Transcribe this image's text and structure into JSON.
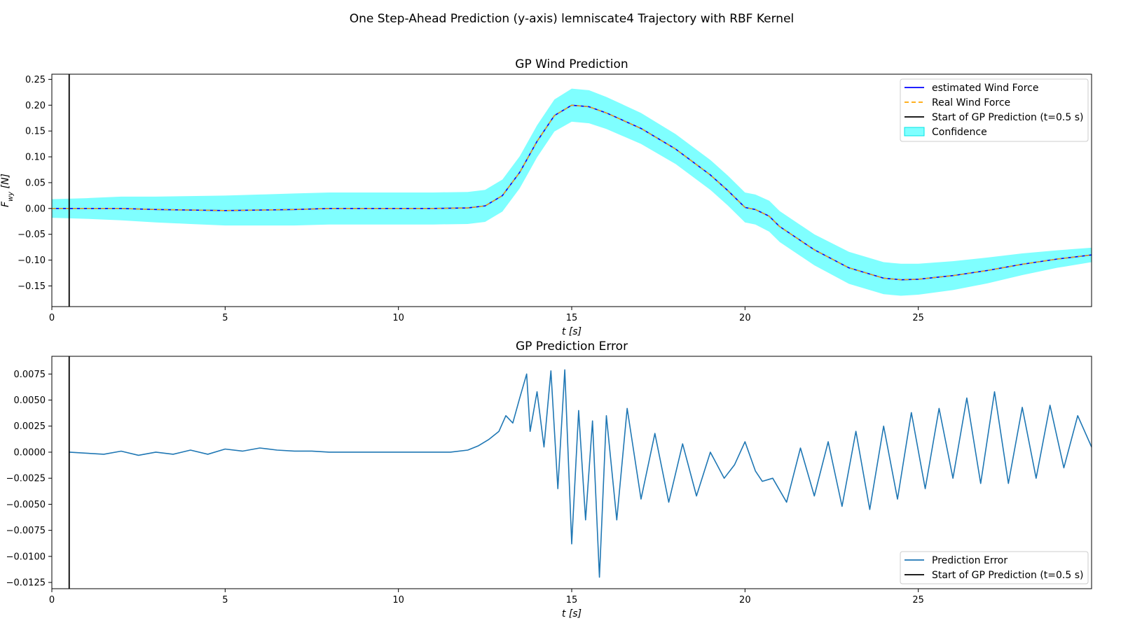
{
  "figure": {
    "suptitle": "One Step-Ahead Prediction (y-axis) lemniscate4 Trajectory with RBF Kernel"
  },
  "chart_data": [
    {
      "type": "line",
      "title": "GP Wind Prediction",
      "xlabel": "t [s]",
      "ylabel": "F_wy [N]",
      "xlim": [
        0,
        30
      ],
      "ylim": [
        -0.19,
        0.26
      ],
      "x_ticks": [
        0,
        5,
        10,
        15,
        20,
        25
      ],
      "y_ticks": [
        -0.15,
        -0.1,
        -0.05,
        0.0,
        0.05,
        0.1,
        0.15,
        0.2,
        0.25
      ],
      "x_tick_labels": [
        "0",
        "5",
        "10",
        "15",
        "20",
        "25"
      ],
      "y_tick_labels": [
        "−0.15",
        "−0.10",
        "−0.05",
        "0.00",
        "0.05",
        "0.10",
        "0.15",
        "0.20",
        "0.25"
      ],
      "grid": false,
      "legend_position": "upper right",
      "x": [
        0,
        1,
        2,
        3,
        4,
        5,
        6,
        7,
        8,
        9,
        10,
        11,
        12,
        12.5,
        13,
        13.5,
        14,
        14.5,
        15,
        15.5,
        16,
        17,
        18,
        19,
        19.5,
        20,
        20.3,
        20.7,
        21,
        22,
        23,
        24,
        24.5,
        25,
        26,
        27,
        28,
        29,
        30
      ],
      "series": [
        {
          "name": "estimated Wind Force",
          "color": "#0000ff",
          "style": "solid",
          "values": [
            0.0,
            0.0,
            0.0,
            -0.002,
            -0.003,
            -0.004,
            -0.003,
            -0.002,
            0.0,
            0.0,
            0.0,
            0.0,
            0.001,
            0.005,
            0.025,
            0.07,
            0.13,
            0.18,
            0.2,
            0.197,
            0.185,
            0.155,
            0.115,
            0.065,
            0.035,
            0.002,
            -0.002,
            -0.015,
            -0.035,
            -0.08,
            -0.115,
            -0.135,
            -0.138,
            -0.137,
            -0.13,
            -0.12,
            -0.108,
            -0.098,
            -0.09
          ]
        },
        {
          "name": "Real Wind Force",
          "color": "#ffa500",
          "style": "dashed",
          "values": [
            0.0,
            0.0,
            0.0,
            -0.002,
            -0.003,
            -0.004,
            -0.003,
            -0.002,
            0.0,
            0.0,
            0.0,
            0.0,
            0.001,
            0.005,
            0.025,
            0.07,
            0.13,
            0.18,
            0.2,
            0.197,
            0.185,
            0.155,
            0.115,
            0.065,
            0.035,
            0.002,
            -0.002,
            -0.015,
            -0.035,
            -0.08,
            -0.115,
            -0.135,
            -0.138,
            -0.137,
            -0.13,
            -0.12,
            -0.108,
            -0.098,
            -0.09
          ]
        },
        {
          "name": "Start of GP Prediction (t=0.5 s)",
          "type": "vline",
          "color": "#000000",
          "x": 0.5
        },
        {
          "name": "Confidence",
          "type": "band",
          "color": "#00ffff",
          "opacity": 0.5,
          "halfwidth": [
            0.018,
            0.02,
            0.023,
            0.025,
            0.027,
            0.029,
            0.03,
            0.031,
            0.031,
            0.031,
            0.031,
            0.031,
            0.031,
            0.031,
            0.031,
            0.031,
            0.031,
            0.031,
            0.032,
            0.032,
            0.031,
            0.03,
            0.029,
            0.029,
            0.029,
            0.029,
            0.029,
            0.03,
            0.03,
            0.03,
            0.031,
            0.031,
            0.031,
            0.03,
            0.028,
            0.025,
            0.021,
            0.017,
            0.014
          ]
        }
      ]
    },
    {
      "type": "line",
      "title": "GP Prediction Error",
      "xlabel": "t [s]",
      "xlim": [
        0,
        30
      ],
      "ylim": [
        -0.0131,
        0.0092
      ],
      "x_ticks": [
        0,
        5,
        10,
        15,
        20,
        25
      ],
      "y_ticks": [
        -0.0125,
        -0.01,
        -0.0075,
        -0.005,
        -0.0025,
        0.0,
        0.0025,
        0.005,
        0.0075
      ],
      "x_tick_labels": [
        "0",
        "5",
        "10",
        "15",
        "20",
        "25"
      ],
      "y_tick_labels": [
        "−0.0125",
        "−0.0100",
        "−0.0075",
        "−0.0050",
        "−0.0025",
        "0.0000",
        "0.0025",
        "0.0050",
        "0.0075"
      ],
      "grid": false,
      "legend_position": "lower right",
      "x": [
        0.5,
        1,
        1.5,
        2,
        2.5,
        3,
        3.5,
        4,
        4.5,
        5,
        5.5,
        6,
        6.5,
        7,
        7.5,
        8,
        9,
        10,
        11,
        11.5,
        12,
        12.3,
        12.6,
        12.9,
        13.1,
        13.3,
        13.5,
        13.7,
        13.8,
        14.0,
        14.2,
        14.4,
        14.6,
        14.8,
        15.0,
        15.2,
        15.4,
        15.6,
        15.8,
        16.0,
        16.3,
        16.6,
        17.0,
        17.4,
        17.8,
        18.2,
        18.6,
        19.0,
        19.4,
        19.7,
        20.0,
        20.3,
        20.5,
        20.8,
        21.2,
        21.6,
        22.0,
        22.4,
        22.8,
        23.2,
        23.6,
        24.0,
        24.4,
        24.8,
        25.2,
        25.6,
        26.0,
        26.4,
        26.8,
        27.2,
        27.6,
        28.0,
        28.4,
        28.8,
        29.2,
        29.6,
        30.0
      ],
      "series": [
        {
          "name": "Prediction Error",
          "color": "#1f77b4",
          "style": "solid",
          "values": [
            0.0,
            -0.0001,
            -0.0002,
            0.0001,
            -0.0003,
            0.0,
            -0.0002,
            0.0002,
            -0.0002,
            0.0003,
            0.0001,
            0.0004,
            0.0002,
            0.0001,
            0.0001,
            0.0,
            0.0,
            0.0,
            0.0,
            0.0,
            0.0002,
            0.0006,
            0.0012,
            0.002,
            0.0035,
            0.0028,
            0.0052,
            0.0075,
            0.002,
            0.0058,
            0.0005,
            0.0078,
            -0.0035,
            0.0079,
            -0.0088,
            0.004,
            -0.0065,
            0.003,
            -0.012,
            0.0035,
            -0.0065,
            0.0042,
            -0.0045,
            0.0018,
            -0.0048,
            0.0008,
            -0.0042,
            0.0,
            -0.0025,
            -0.0012,
            0.001,
            -0.0018,
            -0.0028,
            -0.0025,
            -0.0048,
            0.0004,
            -0.0042,
            0.001,
            -0.0052,
            0.002,
            -0.0055,
            0.0025,
            -0.0045,
            0.0038,
            -0.0035,
            0.0042,
            -0.0025,
            0.0052,
            -0.003,
            0.0058,
            -0.003,
            0.0043,
            -0.0025,
            0.0045,
            -0.0015,
            0.0035,
            0.0005
          ]
        },
        {
          "name": "Start of GP Prediction (t=0.5 s)",
          "type": "vline",
          "color": "#000000",
          "x": 0.5
        }
      ]
    }
  ]
}
